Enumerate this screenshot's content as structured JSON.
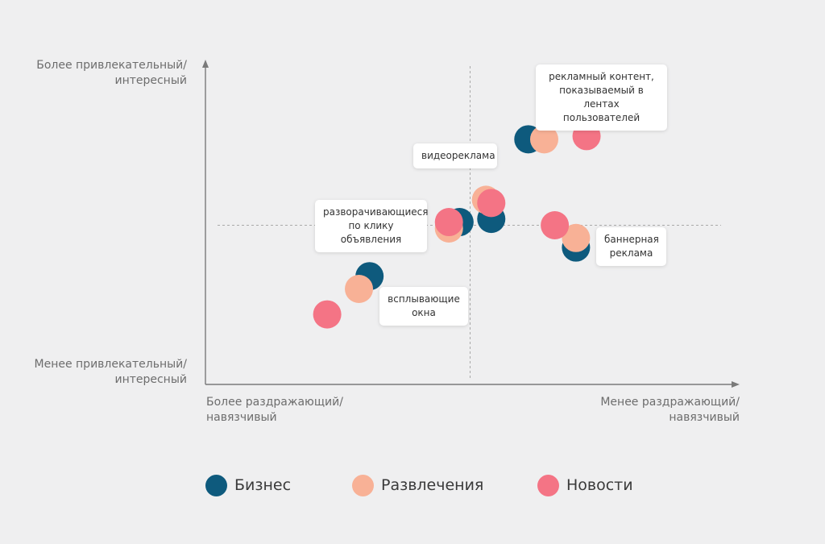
{
  "chart_data": {
    "type": "scatter",
    "x_axis": {
      "left_label": [
        "Более раздражающий/",
        "навязчивый"
      ],
      "right_label": [
        "Менее раздражающий/",
        "навязчивый"
      ]
    },
    "y_axis": {
      "top_label": [
        "Более привлекательный/",
        "интересный"
      ],
      "bottom_label": [
        "Менее привлекательный/",
        "интересный"
      ]
    },
    "series": [
      {
        "name": "Бизнес",
        "color": "#0e5a7d",
        "points": [
          {
            "x": 0.31,
            "y": 0.34
          },
          {
            "x": 0.48,
            "y": 0.51
          },
          {
            "x": 0.54,
            "y": 0.52
          },
          {
            "x": 0.61,
            "y": 0.77
          },
          {
            "x": 0.7,
            "y": 0.43
          }
        ]
      },
      {
        "name": "Развлечения",
        "color": "#f8b196",
        "points": [
          {
            "x": 0.29,
            "y": 0.3
          },
          {
            "x": 0.46,
            "y": 0.49
          },
          {
            "x": 0.53,
            "y": 0.58
          },
          {
            "x": 0.64,
            "y": 0.77
          },
          {
            "x": 0.7,
            "y": 0.46
          }
        ]
      },
      {
        "name": "Новости",
        "color": "#f47485",
        "points": [
          {
            "x": 0.23,
            "y": 0.22
          },
          {
            "x": 0.46,
            "y": 0.51
          },
          {
            "x": 0.54,
            "y": 0.57
          },
          {
            "x": 0.66,
            "y": 0.5
          },
          {
            "x": 0.72,
            "y": 0.78
          }
        ]
      }
    ],
    "annotations": [
      {
        "text": [
          "рекламный контент,",
          "показываемый в лентах",
          "пользователей"
        ]
      },
      {
        "text": [
          "видеореклама"
        ]
      },
      {
        "text": [
          "разворачивающиеся",
          "по клику объявления"
        ]
      },
      {
        "text": [
          "баннерная",
          "реклама"
        ]
      },
      {
        "text": [
          "всплывающие",
          "окна"
        ]
      }
    ],
    "quadrant_lines": {
      "x": 0.5,
      "y": 0.5
    }
  }
}
